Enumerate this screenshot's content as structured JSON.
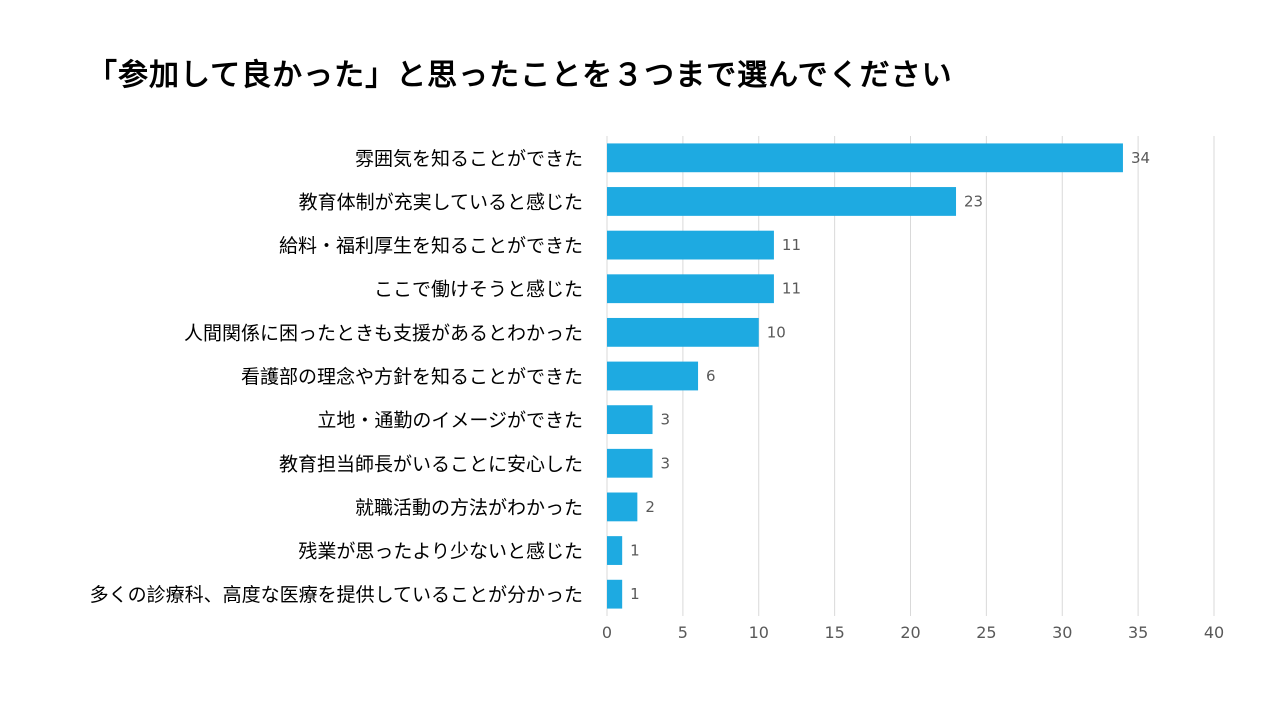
{
  "chart_data": {
    "type": "bar",
    "orientation": "horizontal",
    "title": "「参加して良かった」と思ったことを３つまで選んでください",
    "categories": [
      "雰囲気を知ることができた",
      "教育体制が充実していると感じた",
      "給料・福利厚生を知ることができた",
      "ここで働けそうと感じた",
      "人間関係に困ったときも支援があるとわかった",
      "看護部の理念や方針を知ることができた",
      "立地・通勤のイメージができた",
      "教育担当師長がいることに安心した",
      "就職活動の方法がわかった",
      "残業が思ったより少ないと感じた",
      "多くの診療科、高度な医療を提供していることが分かった"
    ],
    "values": [
      34,
      23,
      11,
      11,
      10,
      6,
      3,
      3,
      2,
      1,
      1
    ],
    "xlim": [
      0,
      40
    ],
    "xticks": [
      0,
      5,
      10,
      15,
      20,
      25,
      30,
      35,
      40
    ],
    "grid": "vertical",
    "data_labels": true,
    "legend": "none",
    "bar_color": "#1eaae1"
  }
}
